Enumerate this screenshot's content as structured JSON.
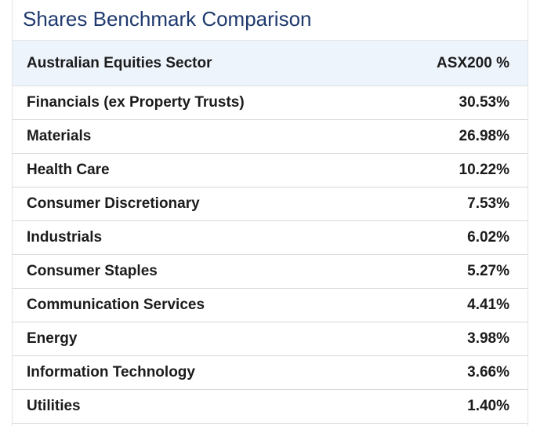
{
  "title": "Shares Benchmark Comparison",
  "table": {
    "headers": {
      "sector": "Australian Equities Sector",
      "value": "ASX200 %"
    },
    "rows": [
      {
        "sector": "Financials (ex Property Trusts)",
        "value": "30.53%"
      },
      {
        "sector": "Materials",
        "value": "26.98%"
      },
      {
        "sector": "Health Care",
        "value": "10.22%"
      },
      {
        "sector": "Consumer Discretionary",
        "value": "7.53%"
      },
      {
        "sector": "Industrials",
        "value": "6.02%"
      },
      {
        "sector": "Consumer Staples",
        "value": "5.27%"
      },
      {
        "sector": "Communication Services",
        "value": "4.41%"
      },
      {
        "sector": "Energy",
        "value": "3.98%"
      },
      {
        "sector": "Information Technology",
        "value": "3.66%"
      },
      {
        "sector": "Utilities",
        "value": "1.40%"
      }
    ]
  }
}
